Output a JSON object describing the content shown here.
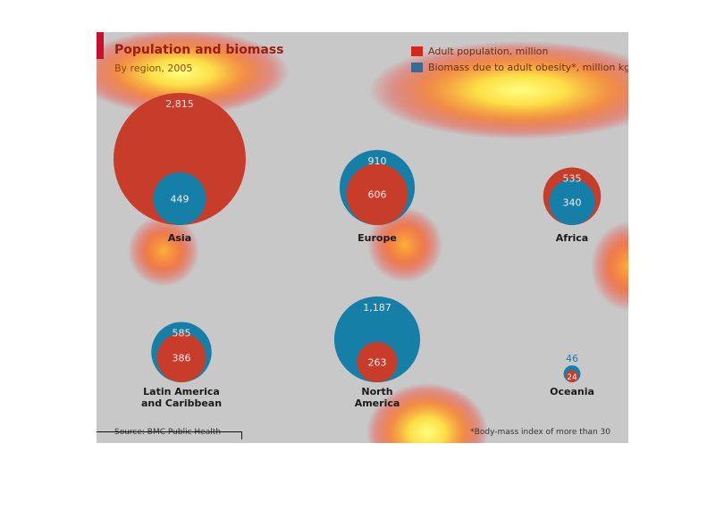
{
  "figure": {
    "title": "Population and biomass",
    "subtitle": "By region, 2005",
    "source": "Source: BMC Public Health",
    "footnote": "*Body-mass index of more than 30"
  },
  "colors": {
    "population": "#c83c2a",
    "biomass": "#167fa8",
    "accent": "#c8102e",
    "background": "#c8c8c8"
  },
  "chart_data": {
    "type": "bubble",
    "legend": {
      "placement": "top-right",
      "items": [
        {
          "label": "Adult population, million",
          "color": "#c83c2a"
        },
        {
          "label": "Biomass due to adult obesity*, million kg",
          "color": "#167fa8"
        }
      ]
    },
    "regions": [
      {
        "name": "Asia",
        "population": 2815,
        "population_label": "2,815",
        "biomass": 449,
        "biomass_label": "449"
      },
      {
        "name": "Europe",
        "population": 606,
        "population_label": "606",
        "biomass": 910,
        "biomass_label": "910"
      },
      {
        "name": "Africa",
        "population": 535,
        "population_label": "535",
        "biomass": 340,
        "biomass_label": "340"
      },
      {
        "name": "Latin America\nand Caribbean",
        "population": 386,
        "population_label": "386",
        "biomass": 585,
        "biomass_label": "585"
      },
      {
        "name": "North\nAmerica",
        "population": 263,
        "population_label": "263",
        "biomass": 1187,
        "biomass_label": "1,187"
      },
      {
        "name": "Oceania",
        "population": 24,
        "population_label": "24",
        "biomass": 46,
        "biomass_label": "46"
      }
    ]
  }
}
